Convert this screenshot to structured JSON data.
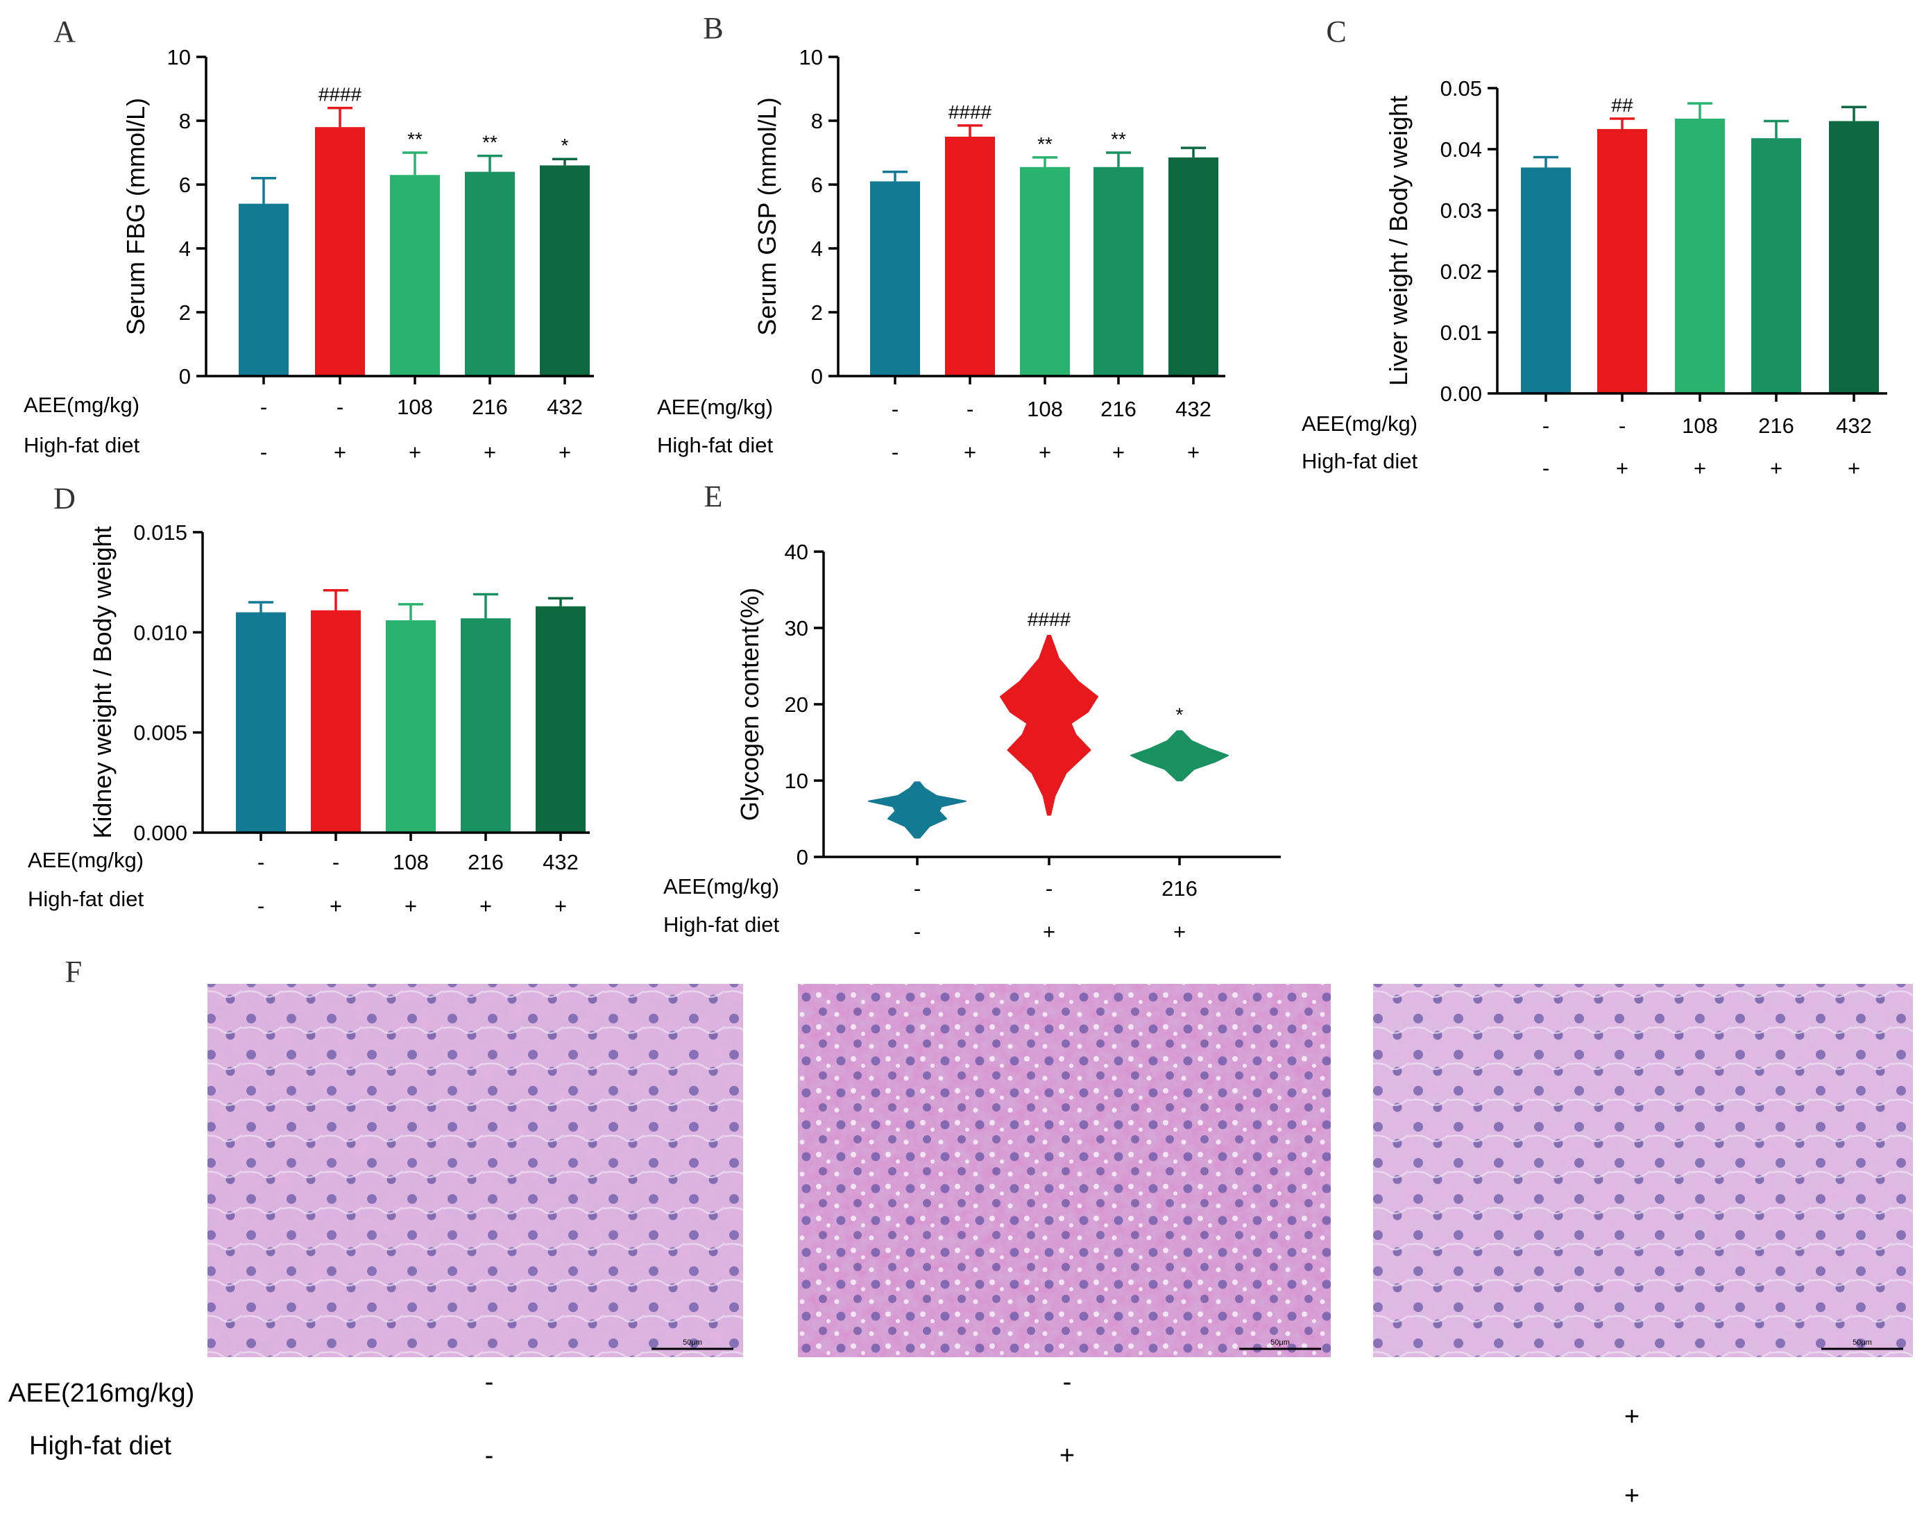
{
  "colors": [
    "#137a93",
    "#e8191d",
    "#2ab36f",
    "#1a9161",
    "#0e6940"
  ],
  "chart_data": [
    {
      "panel": "A",
      "type": "bar",
      "ylabel": "Serum FBG (mmol/L)",
      "ylim": [
        0,
        10
      ],
      "yticks": [
        "0",
        "2",
        "4",
        "6",
        "8",
        "10"
      ],
      "values": [
        5.4,
        7.8,
        6.3,
        6.4,
        6.6
      ],
      "errors": [
        0.8,
        0.6,
        0.7,
        0.5,
        0.2
      ],
      "sig": [
        "",
        "####",
        "**",
        "**",
        "*"
      ],
      "row_labels": [
        "AEE(mg/kg)",
        "High-fat diet"
      ],
      "aee": [
        "-",
        "-",
        "108",
        "216",
        "432"
      ],
      "hfd": [
        "-",
        "+",
        "+",
        "+",
        "+"
      ]
    },
    {
      "panel": "B",
      "type": "bar",
      "ylabel": "Serum GSP (mmol/L)",
      "ylim": [
        0,
        10
      ],
      "yticks": [
        "0",
        "2",
        "4",
        "6",
        "8",
        "10"
      ],
      "values": [
        6.1,
        7.5,
        6.55,
        6.55,
        6.85
      ],
      "errors": [
        0.3,
        0.35,
        0.3,
        0.45,
        0.3
      ],
      "sig": [
        "",
        "####",
        "**",
        "**",
        ""
      ],
      "row_labels": [
        "AEE(mg/kg)",
        "High-fat diet"
      ],
      "aee": [
        "-",
        "-",
        "108",
        "216",
        "432"
      ],
      "hfd": [
        "-",
        "+",
        "+",
        "+",
        "+"
      ]
    },
    {
      "panel": "C",
      "type": "bar",
      "ylabel": "Liver weight / Body weight",
      "ylim": [
        0,
        0.05
      ],
      "yticks": [
        "0.00",
        "0.01",
        "0.02",
        "0.03",
        "0.04",
        "0.05"
      ],
      "values": [
        0.037,
        0.0433,
        0.045,
        0.0418,
        0.0446
      ],
      "errors": [
        0.0017,
        0.0017,
        0.0025,
        0.0028,
        0.0023
      ],
      "sig": [
        "",
        "##",
        "",
        "",
        ""
      ],
      "row_labels": [
        "AEE(mg/kg)",
        "High-fat diet"
      ],
      "aee": [
        "-",
        "-",
        "108",
        "216",
        "432"
      ],
      "hfd": [
        "-",
        "+",
        "+",
        "+",
        "+"
      ]
    },
    {
      "panel": "D",
      "type": "bar",
      "ylabel": "Kidney weight / Body weight",
      "ylim": [
        0,
        0.015
      ],
      "yticks": [
        "0.000",
        "0.005",
        "0.010",
        "0.015"
      ],
      "values": [
        0.011,
        0.0111,
        0.0106,
        0.0107,
        0.0113
      ],
      "errors": [
        0.0005,
        0.001,
        0.0008,
        0.0012,
        0.0004
      ],
      "sig": [
        "",
        "",
        "",
        "",
        ""
      ],
      "row_labels": [
        "AEE(mg/kg)",
        "High-fat diet"
      ],
      "aee": [
        "-",
        "-",
        "108",
        "216",
        "432"
      ],
      "hfd": [
        "-",
        "+",
        "+",
        "+",
        "+"
      ]
    },
    {
      "panel": "E",
      "type": "violin",
      "ylabel": "Glycogen content(%)",
      "ylim": [
        0,
        40
      ],
      "yticks": [
        "0",
        "10",
        "20",
        "30",
        "40"
      ],
      "groups": [
        {
          "color": "#137a93",
          "profile": [
            [
              2.5,
              0.05
            ],
            [
              4,
              0.25
            ],
            [
              5,
              0.6
            ],
            [
              6,
              0.45
            ],
            [
              6.6,
              0.5
            ],
            [
              7.3,
              1.0
            ],
            [
              8,
              0.4
            ],
            [
              9,
              0.15
            ],
            [
              9.8,
              0.05
            ]
          ]
        },
        {
          "color": "#e8191d",
          "profile": [
            [
              5.5,
              0.03
            ],
            [
              8,
              0.12
            ],
            [
              11,
              0.35
            ],
            [
              14,
              0.85
            ],
            [
              16,
              0.55
            ],
            [
              17.5,
              0.45
            ],
            [
              19,
              0.8
            ],
            [
              21,
              1.0
            ],
            [
              23,
              0.6
            ],
            [
              26,
              0.2
            ],
            [
              29,
              0.03
            ]
          ]
        },
        {
          "color": "#1a9161",
          "profile": [
            [
              10,
              0.05
            ],
            [
              11.5,
              0.3
            ],
            [
              12.5,
              0.75
            ],
            [
              13.3,
              1.0
            ],
            [
              14.2,
              0.6
            ],
            [
              15.2,
              0.25
            ],
            [
              16.5,
              0.05
            ]
          ]
        }
      ],
      "sig": [
        "",
        "####",
        "*"
      ],
      "row_labels": [
        "AEE(mg/kg)",
        "High-fat diet"
      ],
      "aee": [
        "-",
        "-",
        "216"
      ],
      "hfd": [
        "-",
        "+",
        "+"
      ]
    }
  ],
  "panel_f": {
    "panel": "F",
    "row_labels": [
      "AEE(216mg/kg)",
      "High-fat diet"
    ],
    "aee": [
      "-",
      "-",
      "+"
    ],
    "hfd": [
      "-",
      "+",
      "+"
    ],
    "scalebar": "50μm"
  }
}
